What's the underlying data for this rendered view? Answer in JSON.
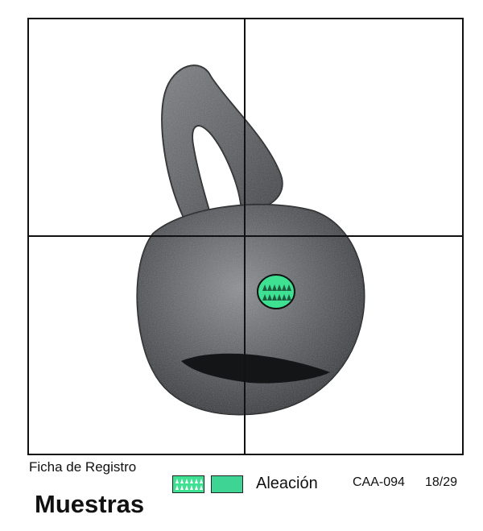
{
  "record": {
    "subtitle": "Ficha de Registro",
    "title": "Muestras",
    "code": "CAA-094",
    "page": "18/29"
  },
  "legend": {
    "label": "Aleación",
    "pattern_color": "#3ee091",
    "solid_color": "#3ed493"
  },
  "object": {
    "description_icon": "metal-bell-photo",
    "marker": "sample-point-marker"
  }
}
